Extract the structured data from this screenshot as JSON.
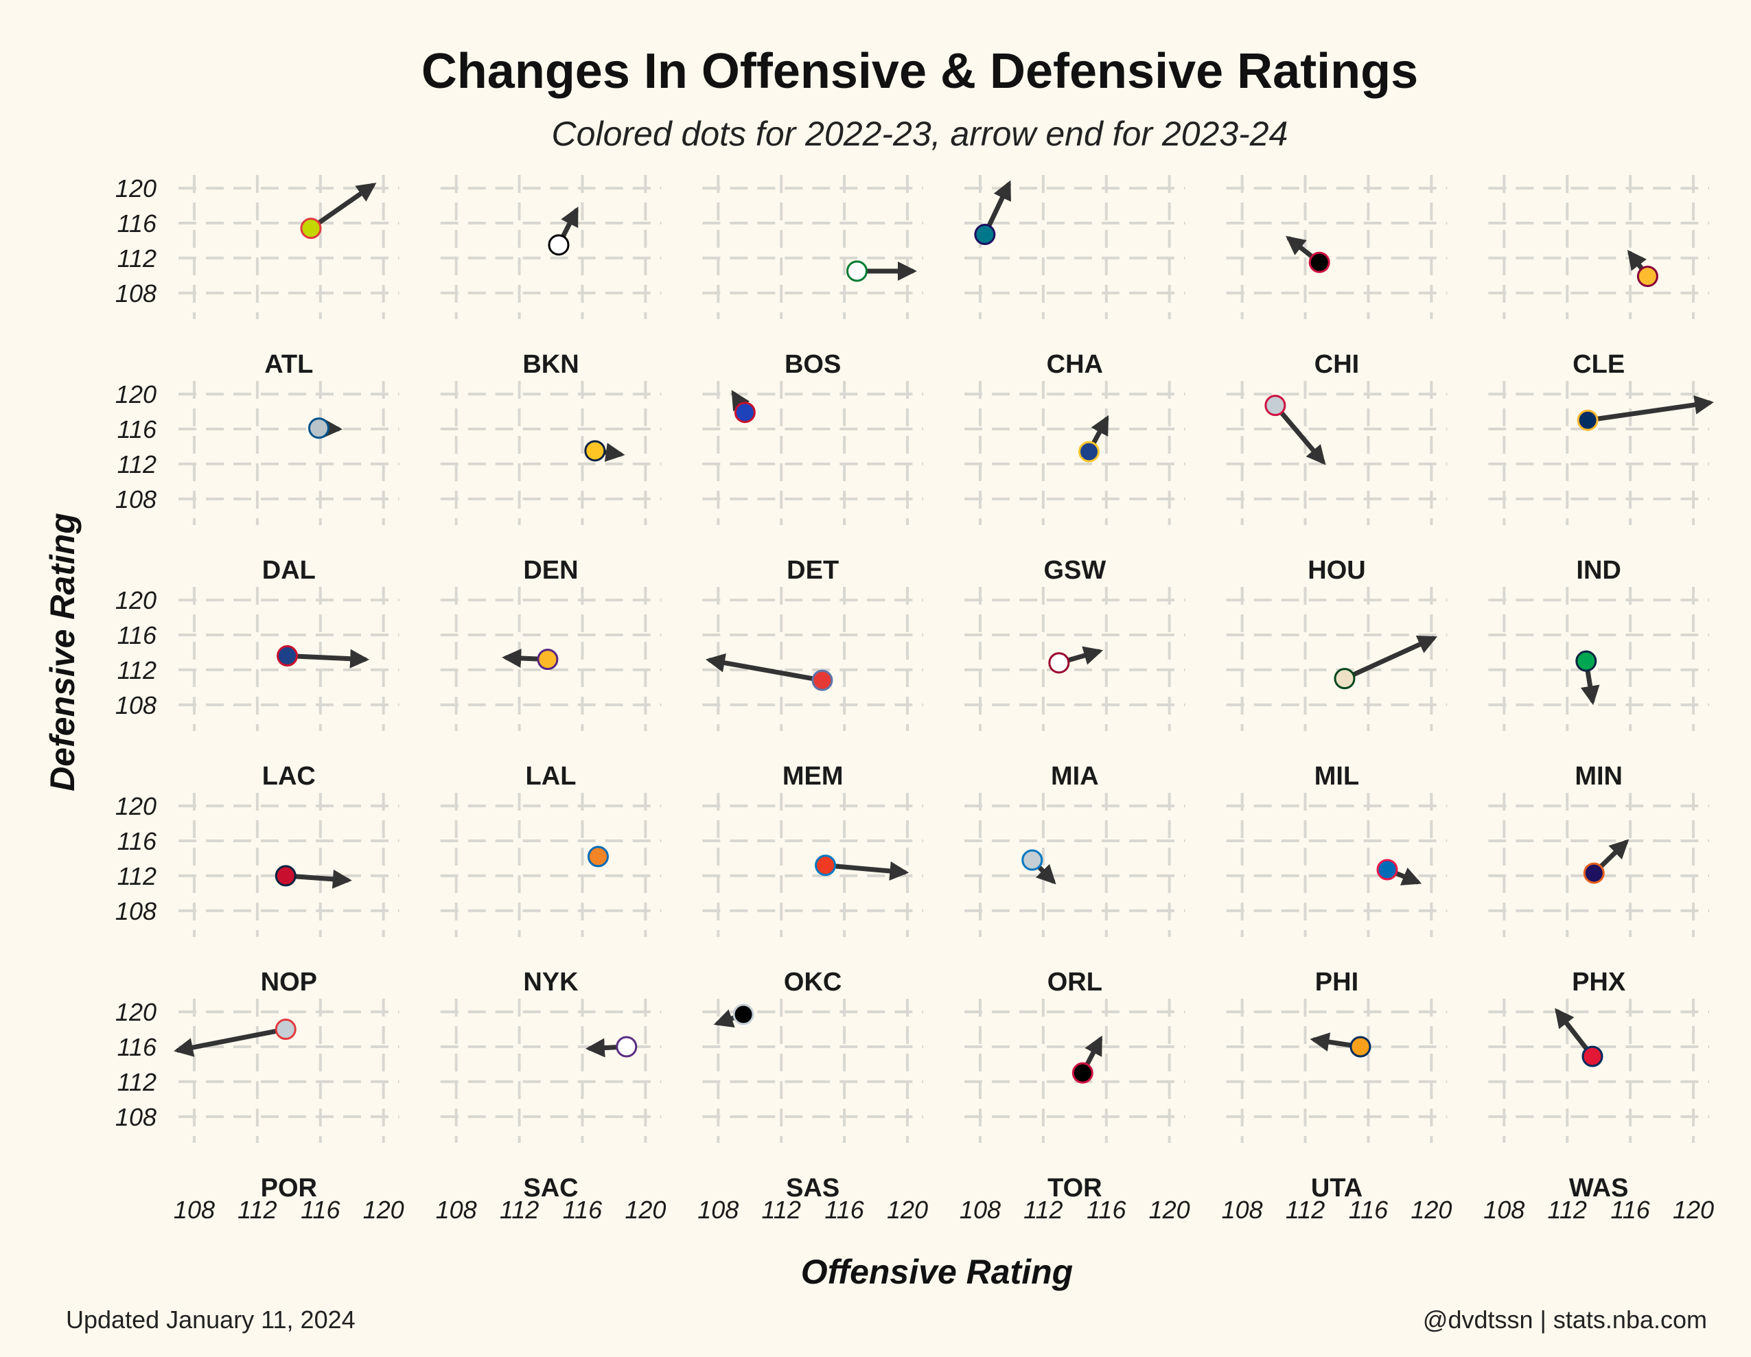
{
  "chart_data": {
    "type": "scatter",
    "title": "Changes In Offensive & Defensive Ratings",
    "subtitle": "Colored dots for 2022-23, arrow end for 2023-24",
    "xlabel": "Offensive Rating",
    "ylabel": "Defensive Rating",
    "xlim": [
      107,
      121
    ],
    "ylim": [
      105,
      121.5
    ],
    "xticks": [
      108,
      112,
      116,
      120
    ],
    "yticks": [
      120,
      116,
      112,
      108
    ],
    "grid": true,
    "layout": "facet grid, 6 columns by 5 rows",
    "teams": [
      {
        "name": "ATL",
        "start": [
          115.4,
          115.4
        ],
        "end": [
          119.3,
          120.3
        ],
        "fill": "#c4d600",
        "stroke": "#e03a3e"
      },
      {
        "name": "BKN",
        "start": [
          114.5,
          113.5
        ],
        "end": [
          115.6,
          117.4
        ],
        "fill": "#ffffff",
        "stroke": "#000000"
      },
      {
        "name": "BOS",
        "start": [
          116.8,
          110.5
        ],
        "end": [
          120.3,
          110.5
        ],
        "fill": "#ffffff",
        "stroke": "#007a33"
      },
      {
        "name": "CHA",
        "start": [
          108.3,
          114.7
        ],
        "end": [
          109.8,
          120.4
        ],
        "fill": "#00788c",
        "stroke": "#1d1160"
      },
      {
        "name": "CHI",
        "start": [
          112.9,
          111.5
        ],
        "end": [
          111.0,
          114.2
        ],
        "fill": "#000000",
        "stroke": "#ce1141"
      },
      {
        "name": "CLE",
        "start": [
          117.1,
          109.9
        ],
        "end": [
          116.0,
          112.5
        ],
        "fill": "#fdbb30",
        "stroke": "#860038"
      },
      {
        "name": "DAL",
        "start": [
          115.9,
          116.1
        ],
        "end": [
          117.1,
          116.0
        ],
        "fill": "#b8c4ca",
        "stroke": "#00538c"
      },
      {
        "name": "DEN",
        "start": [
          116.8,
          113.5
        ],
        "end": [
          118.4,
          113.1
        ],
        "fill": "#fec524",
        "stroke": "#0e2240"
      },
      {
        "name": "DET",
        "start": [
          109.7,
          117.9
        ],
        "end": [
          109.0,
          120.0
        ],
        "fill": "#1d42ba",
        "stroke": "#c8102e"
      },
      {
        "name": "GSW",
        "start": [
          114.9,
          113.4
        ],
        "end": [
          116.0,
          117.1
        ],
        "fill": "#1d428a",
        "stroke": "#ffc72c"
      },
      {
        "name": "HOU",
        "start": [
          110.1,
          118.7
        ],
        "end": [
          113.1,
          112.3
        ],
        "fill": "#c4ced4",
        "stroke": "#ce1141"
      },
      {
        "name": "IND",
        "start": [
          113.3,
          117.0
        ],
        "end": [
          121.0,
          119.0
        ],
        "fill": "#002d62",
        "stroke": "#fdbb30"
      },
      {
        "name": "LAC",
        "start": [
          113.9,
          113.6
        ],
        "end": [
          118.8,
          113.2
        ],
        "fill": "#1d428a",
        "stroke": "#c8102e"
      },
      {
        "name": "LAL",
        "start": [
          113.8,
          113.2
        ],
        "end": [
          111.2,
          113.4
        ],
        "fill": "#fdb927",
        "stroke": "#552583"
      },
      {
        "name": "MEM",
        "start": [
          114.6,
          110.8
        ],
        "end": [
          107.5,
          113.1
        ],
        "fill": "#e53935",
        "stroke": "#5d76a9"
      },
      {
        "name": "MIA",
        "start": [
          113.0,
          112.8
        ],
        "end": [
          115.5,
          114.1
        ],
        "fill": "#ffffff",
        "stroke": "#98002e"
      },
      {
        "name": "MIL",
        "start": [
          114.5,
          111.0
        ],
        "end": [
          120.1,
          115.6
        ],
        "fill": "#eee1c6",
        "stroke": "#00471b"
      },
      {
        "name": "MIN",
        "start": [
          113.2,
          113.0
        ],
        "end": [
          113.6,
          108.5
        ],
        "fill": "#00a651",
        "stroke": "#0c2340"
      },
      {
        "name": "NOP",
        "start": [
          113.8,
          112.0
        ],
        "end": [
          117.7,
          111.5
        ],
        "fill": "#c8102e",
        "stroke": "#0c2340"
      },
      {
        "name": "NYK",
        "start": [
          117.0,
          114.2
        ],
        "end": [
          117.0,
          114.2
        ],
        "fill": "#f58426",
        "stroke": "#006bb6"
      },
      {
        "name": "OKC",
        "start": [
          114.8,
          113.2
        ],
        "end": [
          119.8,
          112.4
        ],
        "fill": "#ef3b24",
        "stroke": "#007ac1"
      },
      {
        "name": "ORL",
        "start": [
          111.3,
          113.8
        ],
        "end": [
          112.6,
          111.4
        ],
        "fill": "#c4ced4",
        "stroke": "#0077c0"
      },
      {
        "name": "PHI",
        "start": [
          117.2,
          112.7
        ],
        "end": [
          119.1,
          111.3
        ],
        "fill": "#006bb6",
        "stroke": "#ed174c"
      },
      {
        "name": "PHX",
        "start": [
          113.7,
          112.3
        ],
        "end": [
          115.7,
          115.8
        ],
        "fill": "#1d1160",
        "stroke": "#e56020"
      },
      {
        "name": "POR",
        "start": [
          113.8,
          118.0
        ],
        "end": [
          107.0,
          115.6
        ],
        "fill": "#c4ced4",
        "stroke": "#e03a3e"
      },
      {
        "name": "SAC",
        "start": [
          118.8,
          116.0
        ],
        "end": [
          116.5,
          115.8
        ],
        "fill": "#ffffff",
        "stroke": "#5a2d81"
      },
      {
        "name": "SAS",
        "start": [
          109.6,
          119.7
        ],
        "end": [
          108.0,
          118.7
        ],
        "fill": "#000000",
        "stroke": "#c4ced4"
      },
      {
        "name": "TOR",
        "start": [
          114.5,
          113.0
        ],
        "end": [
          115.6,
          116.8
        ],
        "fill": "#000000",
        "stroke": "#ce1141"
      },
      {
        "name": "UTA",
        "start": [
          115.5,
          116.0
        ],
        "end": [
          112.6,
          116.8
        ],
        "fill": "#f9a01b",
        "stroke": "#002b5c"
      },
      {
        "name": "WAS",
        "start": [
          113.6,
          114.9
        ],
        "end": [
          111.4,
          120.0
        ],
        "fill": "#e31837",
        "stroke": "#002b5c"
      }
    ]
  },
  "footer": {
    "left": "Updated January 11, 2024",
    "right": "@dvdtssn | stats.nba.com"
  }
}
